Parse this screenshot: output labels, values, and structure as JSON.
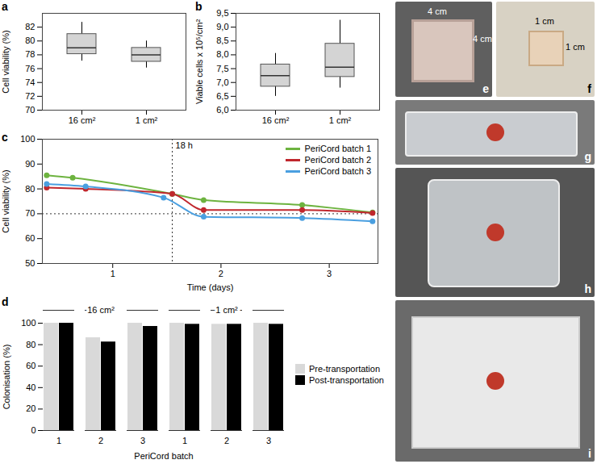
{
  "chart_data": [
    {
      "panel": "a",
      "type": "box",
      "categories": [
        "16 cm²",
        "1 cm²"
      ],
      "y_label": "Cell viability (%)",
      "ylim": [
        70,
        84
      ],
      "yticks": [
        70,
        72,
        74,
        76,
        78,
        80,
        82
      ],
      "color": "#d4d4d4",
      "boxes": [
        {
          "min": 77.1,
          "q1": 78.1,
          "median": 79.0,
          "q3": 81.0,
          "max": 82.7
        },
        {
          "min": 76.1,
          "q1": 77.0,
          "median": 78.0,
          "q3": 79.0,
          "max": 80.0
        }
      ]
    },
    {
      "panel": "b",
      "type": "box",
      "categories": [
        "16 cm²",
        "1 cm²"
      ],
      "y_label": "Viable cells x 10⁵/cm²",
      "ylim": [
        6.0,
        9.5
      ],
      "yticks": [
        {
          "value": 6.0,
          "label": "6,0"
        },
        {
          "value": 6.5,
          "label": "6,5"
        },
        {
          "value": 7.0,
          "label": "7,0"
        },
        {
          "value": 7.5,
          "label": "7,5"
        },
        {
          "value": 8.0,
          "label": "8,0"
        },
        {
          "value": 8.5,
          "label": "8,5"
        },
        {
          "value": 9.0,
          "label": "9,0"
        },
        {
          "value": 9.5,
          "label": "9,5"
        }
      ],
      "color": "#d4d4d4",
      "boxes": [
        {
          "min": 6.5,
          "q1": 6.85,
          "median": 7.25,
          "q3": 7.65,
          "max": 8.05
        },
        {
          "min": 6.8,
          "q1": 7.2,
          "median": 7.55,
          "q3": 8.4,
          "max": 9.25
        }
      ]
    },
    {
      "panel": "c",
      "type": "line",
      "x_label": "Time (days)",
      "y_label": "Cell viability (%)",
      "xlim": [
        0.35,
        3.45
      ],
      "xticks": [
        1,
        2,
        3
      ],
      "ylim": [
        50,
        100
      ],
      "yticks": [
        50,
        60,
        70,
        80,
        90,
        100
      ],
      "legend": "top-right",
      "marker": "circle",
      "series": [
        {
          "name": "PeriCord batch 1",
          "color": "#6db33f",
          "x": [
            0.39,
            0.63,
            1.55,
            1.84,
            2.75,
            3.4
          ],
          "values": [
            85.5,
            84.5,
            78.0,
            75.5,
            73.5,
            70.5
          ]
        },
        {
          "name": "PeriCord batch 2",
          "color": "#c0272d",
          "x": [
            0.39,
            0.75,
            1.55,
            1.84,
            2.75,
            3.4
          ],
          "values": [
            80.5,
            80.0,
            78.0,
            71.5,
            71.5,
            70.3
          ]
        },
        {
          "name": "PeriCord batch 3",
          "color": "#4a9fe0",
          "x": [
            0.39,
            0.75,
            1.47,
            1.84,
            2.75,
            3.4
          ],
          "values": [
            82.0,
            81.0,
            76.5,
            68.8,
            68.3,
            67.0
          ]
        }
      ],
      "reference_lines": [
        {
          "x": 1.55,
          "label": "18 h",
          "line_style": "dotted"
        },
        {
          "y": 70,
          "line_style": "dotted"
        }
      ]
    },
    {
      "panel": "d",
      "type": "bar",
      "categories": [
        "1",
        "2",
        "3",
        "1",
        "2",
        "3"
      ],
      "groups": [
        "16 cm²",
        "1 cm²"
      ],
      "x_label": "PeriCord batch",
      "y_label": "Colonisation (%)",
      "ylim": [
        0,
        100
      ],
      "yticks": [
        0,
        20,
        40,
        60,
        80,
        100
      ],
      "legend": "right",
      "series": [
        {
          "name": "Pre-transportation",
          "color": "#d9d9d9",
          "values": [
            100,
            86.5,
            100,
            100,
            99,
            100
          ]
        },
        {
          "name": "Post-transportation",
          "color": "#000000",
          "values": [
            100,
            82.5,
            97,
            99,
            99,
            99
          ]
        }
      ]
    }
  ],
  "photos": [
    {
      "panel": "e",
      "labels": [
        "4 cm",
        "4 cm"
      ]
    },
    {
      "panel": "f",
      "labels": [
        "1 cm",
        "1 cm"
      ]
    },
    {
      "panel": "g"
    },
    {
      "panel": "h"
    },
    {
      "panel": "i"
    }
  ]
}
